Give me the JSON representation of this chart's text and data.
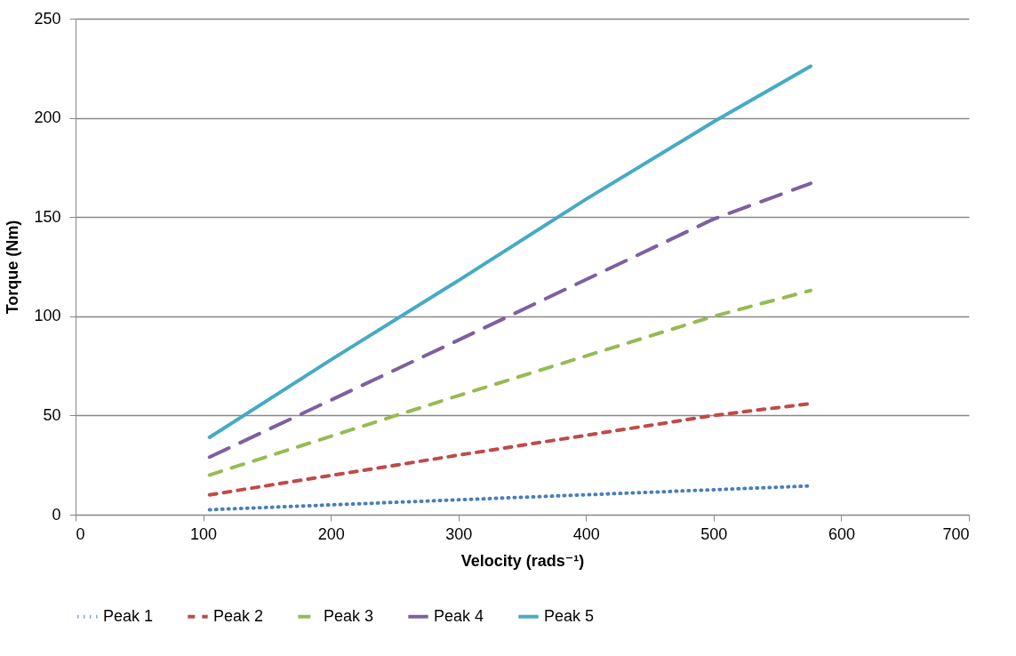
{
  "chart_data": {
    "type": "line",
    "xlabel": "Velocity (rads⁻¹)",
    "ylabel": "Torque (Nm)",
    "xlim": [
      0,
      700
    ],
    "xticks": [
      0,
      100,
      200,
      300,
      400,
      500,
      600,
      700
    ],
    "ylim": [
      0,
      250
    ],
    "yticks": [
      0,
      50,
      100,
      150,
      200,
      250
    ],
    "grid": "y",
    "legend": "bottom",
    "marker": "none",
    "series": [
      {
        "name": "Peak 1",
        "color": "#4a7ebb",
        "line_style": "dotted",
        "x": [
          105,
          300,
          576
        ],
        "values": [
          2.5,
          7.5,
          14.5
        ]
      },
      {
        "name": "Peak 2",
        "color": "#be4b48",
        "line_style": "dashed",
        "x": [
          105,
          300,
          500,
          576
        ],
        "values": [
          10,
          30,
          50,
          56
        ]
      },
      {
        "name": "Peak 3",
        "color": "#98b954",
        "line_style": "dashed",
        "x": [
          105,
          300,
          500,
          576
        ],
        "values": [
          20,
          60,
          100,
          113
        ]
      },
      {
        "name": "Peak 4",
        "color": "#7d60a0",
        "line_style": "dashed",
        "x": [
          105,
          300,
          500,
          576
        ],
        "values": [
          29,
          88,
          149,
          167
        ]
      },
      {
        "name": "Peak 5",
        "color": "#46aac5",
        "line_style": "solid",
        "x": [
          105,
          200,
          300,
          400,
          500,
          576
        ],
        "values": [
          39,
          78,
          118,
          159,
          198,
          226
        ]
      }
    ]
  }
}
